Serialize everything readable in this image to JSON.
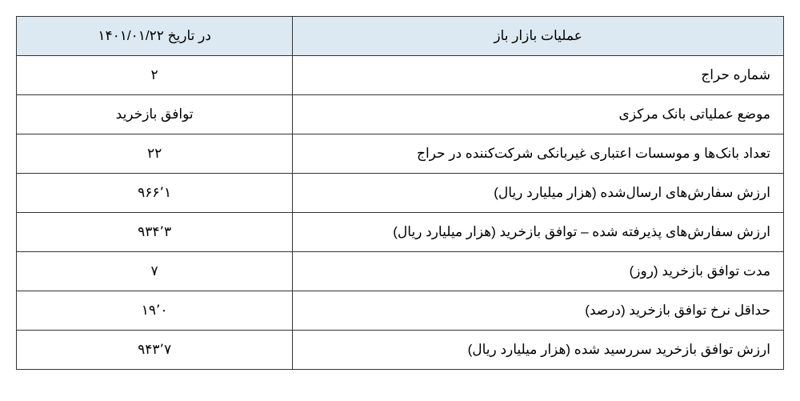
{
  "table": {
    "type": "table",
    "header_bg": "#dde9f2",
    "border_color": "#333333",
    "font_family": "Tahoma",
    "font_size": 17,
    "text_color": "#000000",
    "col_label_width_pct": 64,
    "col_value_width_pct": 36,
    "headers": {
      "label": "عملیات بازار باز",
      "value": "در تاریخ ۱۴۰۱/۰۱/۲۲"
    },
    "rows": [
      {
        "label": "شماره حراج",
        "value": "۲"
      },
      {
        "label": "موضع عملیاتی بانک مرکزی",
        "value": "توافق بازخرید"
      },
      {
        "label": "تعداد بانک‌ها و موسسات اعتباری غیربانکی شرکت‌کننده در حراج",
        "value": "۲۲"
      },
      {
        "label": "ارزش سفارش‌های ارسال‌شده (هزار میلیارد ریال)",
        "value": "۹۶۶٬۱"
      },
      {
        "label": "ارزش سفارش‌های پذیرفته شده – توافق بازخرید (هزار میلیارد ریال)",
        "value": "۹۳۴٬۳"
      },
      {
        "label": "مدت توافق بازخرید (روز)",
        "value": "۷"
      },
      {
        "label": "حداقل نرخ توافق بازخرید (درصد)",
        "value": "۱۹٬۰"
      },
      {
        "label": "ارزش توافق بازخرید سررسید شده (هزار میلیارد ریال)",
        "value": "۹۴۳٬۷"
      }
    ]
  }
}
